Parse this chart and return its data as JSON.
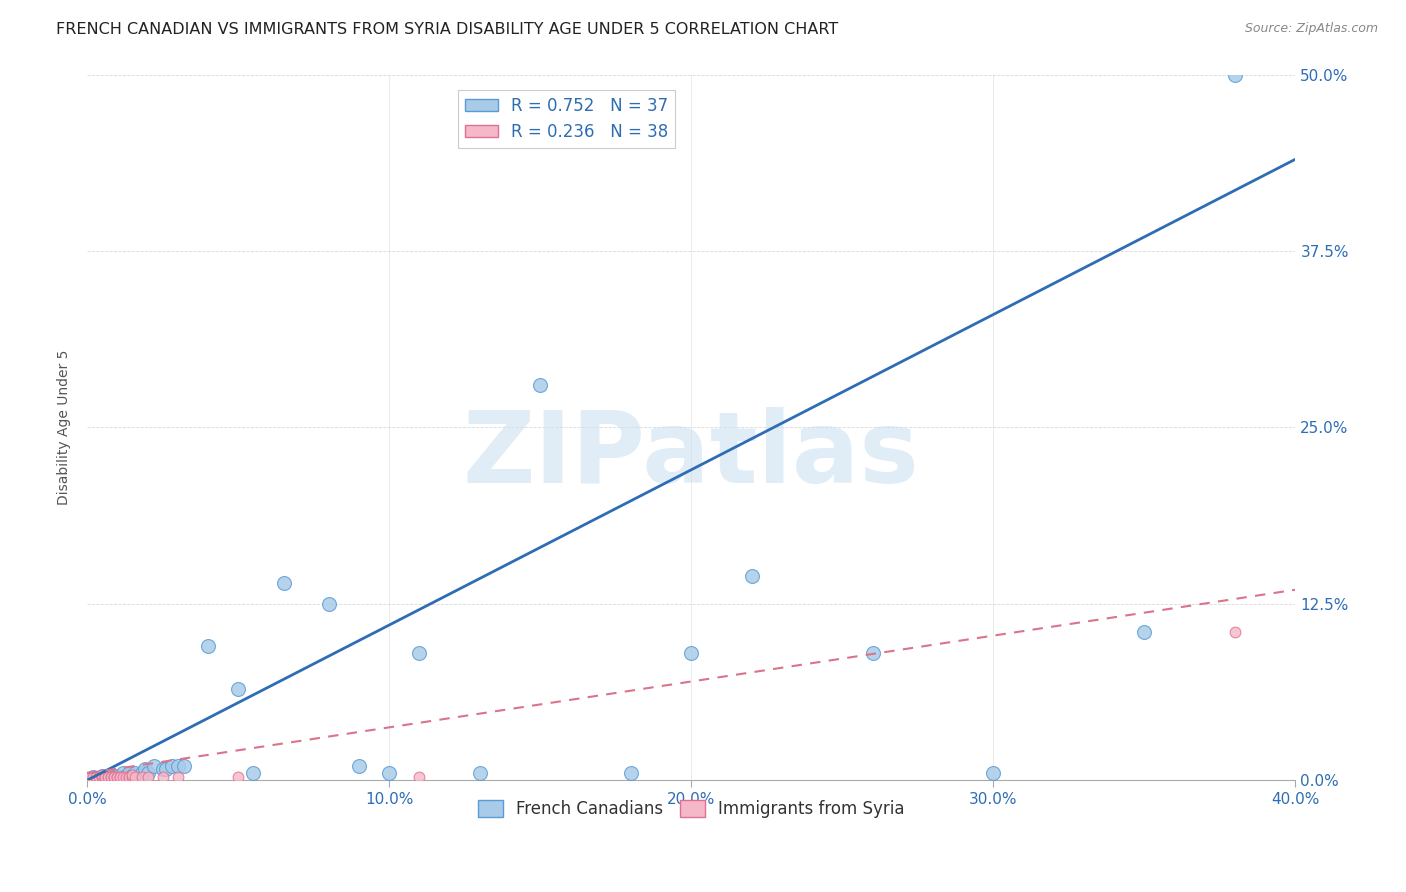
{
  "title": "FRENCH CANADIAN VS IMMIGRANTS FROM SYRIA DISABILITY AGE UNDER 5 CORRELATION CHART",
  "source": "Source: ZipAtlas.com",
  "ylabel": "Disability Age Under 5",
  "xlabel_ticks": [
    "0.0%",
    "10.0%",
    "20.0%",
    "30.0%",
    "40.0%"
  ],
  "ylabel_ticks": [
    "0.0%",
    "12.5%",
    "25.0%",
    "37.5%",
    "50.0%"
  ],
  "xlim": [
    0.0,
    0.4
  ],
  "ylim": [
    0.0,
    0.5
  ],
  "blue_scatter_x": [
    0.002,
    0.005,
    0.006,
    0.008,
    0.009,
    0.01,
    0.012,
    0.013,
    0.014,
    0.015,
    0.016,
    0.018,
    0.019,
    0.02,
    0.022,
    0.025,
    0.026,
    0.028,
    0.03,
    0.032,
    0.04,
    0.05,
    0.055,
    0.065,
    0.08,
    0.09,
    0.1,
    0.11,
    0.13,
    0.15,
    0.18,
    0.2,
    0.22,
    0.26,
    0.3,
    0.35,
    0.38
  ],
  "blue_scatter_y": [
    0.002,
    0.003,
    0.002,
    0.003,
    0.002,
    0.003,
    0.005,
    0.003,
    0.005,
    0.003,
    0.005,
    0.005,
    0.008,
    0.005,
    0.01,
    0.008,
    0.008,
    0.01,
    0.01,
    0.01,
    0.095,
    0.065,
    0.005,
    0.14,
    0.125,
    0.01,
    0.005,
    0.09,
    0.005,
    0.28,
    0.005,
    0.09,
    0.145,
    0.09,
    0.005,
    0.105,
    0.5
  ],
  "pink_scatter_x": [
    0.0,
    0.001,
    0.002,
    0.003,
    0.003,
    0.004,
    0.004,
    0.005,
    0.005,
    0.005,
    0.006,
    0.006,
    0.006,
    0.007,
    0.007,
    0.008,
    0.008,
    0.009,
    0.009,
    0.009,
    0.01,
    0.01,
    0.011,
    0.011,
    0.012,
    0.013,
    0.014,
    0.014,
    0.015,
    0.015,
    0.016,
    0.018,
    0.02,
    0.025,
    0.03,
    0.05,
    0.11,
    0.38
  ],
  "pink_scatter_y": [
    0.002,
    0.002,
    0.002,
    0.002,
    0.002,
    0.002,
    0.002,
    0.002,
    0.002,
    0.004,
    0.002,
    0.002,
    0.002,
    0.002,
    0.002,
    0.002,
    0.002,
    0.002,
    0.002,
    0.002,
    0.002,
    0.002,
    0.002,
    0.002,
    0.002,
    0.002,
    0.002,
    0.002,
    0.002,
    0.004,
    0.002,
    0.002,
    0.002,
    0.002,
    0.002,
    0.002,
    0.002,
    0.105
  ],
  "blue_line_x0": 0.0,
  "blue_line_x1": 0.4,
  "blue_line_y0": 0.0,
  "blue_line_y1": 0.44,
  "pink_line_x0": 0.0,
  "pink_line_x1": 0.4,
  "pink_line_y0": 0.005,
  "pink_line_y1": 0.135,
  "blue_color": "#a8cce8",
  "blue_edge_color": "#5b9bd5",
  "pink_color": "#f4b8c8",
  "pink_edge_color": "#e07090",
  "blue_line_color": "#2e6db4",
  "pink_line_color": "#d9748a",
  "r_blue": "0.752",
  "n_blue": "37",
  "r_pink": "0.236",
  "n_pink": "38",
  "legend_label_blue": "French Canadians",
  "legend_label_pink": "Immigrants from Syria",
  "watermark_text": "ZIPatlas",
  "background_color": "#ffffff",
  "grid_color": "#d0d0d0",
  "title_color": "#222222",
  "tick_color": "#2e6db4",
  "source_color": "#888888",
  "ylabel_color": "#555555",
  "title_fontsize": 11.5,
  "axis_label_fontsize": 10,
  "tick_fontsize": 11,
  "legend_fontsize": 12,
  "source_fontsize": 9,
  "watermark_fontsize": 72,
  "scatter_size_blue": 100,
  "scatter_size_pink": 60
}
